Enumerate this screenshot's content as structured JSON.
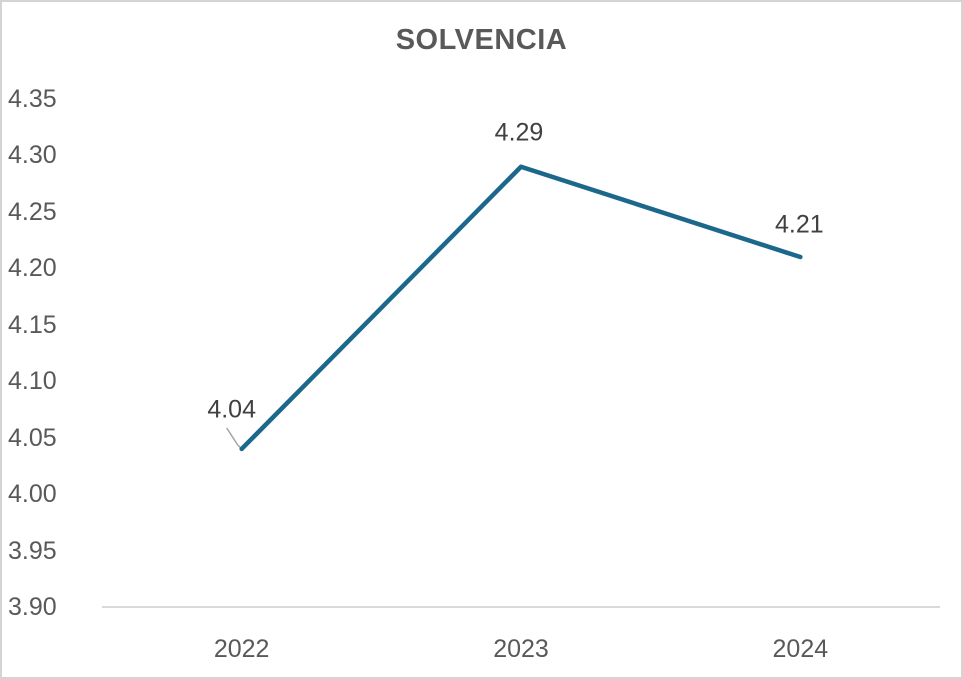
{
  "chart_data": {
    "type": "line",
    "title": "SOLVENCIA",
    "categories": [
      "2022",
      "2023",
      "2024"
    ],
    "series": [
      {
        "name": "SOLVENCIA",
        "values": [
          4.04,
          4.29,
          4.21
        ],
        "data_labels": [
          "4.04",
          "4.29",
          "4.21"
        ]
      }
    ],
    "xlabel": "",
    "ylabel": "",
    "ylim": [
      3.9,
      4.35
    ],
    "y_tick_interval": 0.05,
    "y_tick_labels": [
      "3.90",
      "3.95",
      "4.00",
      "4.05",
      "4.10",
      "4.15",
      "4.20",
      "4.25",
      "4.30",
      "4.35"
    ],
    "grid": false,
    "legend": false,
    "colors": {
      "series_line": "#1c688c",
      "axis_line": "#d9d9d9",
      "tick_text": "#595959",
      "data_label_text": "#404040",
      "title_text": "#595959",
      "leader_line": "#a6a6a6",
      "background": "#ffffff",
      "border": "#d6d3d3"
    }
  }
}
